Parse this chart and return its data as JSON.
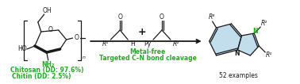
{
  "bg_color": "#ffffff",
  "green_color": "#22aa22",
  "black_color": "#1a1a1a",
  "light_blue_color": "#b8d8e8",
  "arrow_color": "#444444",
  "text_chitosan": "Chitosan (DD: 97.6%)",
  "text_chitin": "Chitin (DD: 2.5%)",
  "text_metal_free": "Metal-free",
  "text_targeted": "Targeted C–N bond cleavage",
  "text_examples": "52 examples",
  "figsize": [
    3.78,
    1.06
  ],
  "dpi": 100
}
